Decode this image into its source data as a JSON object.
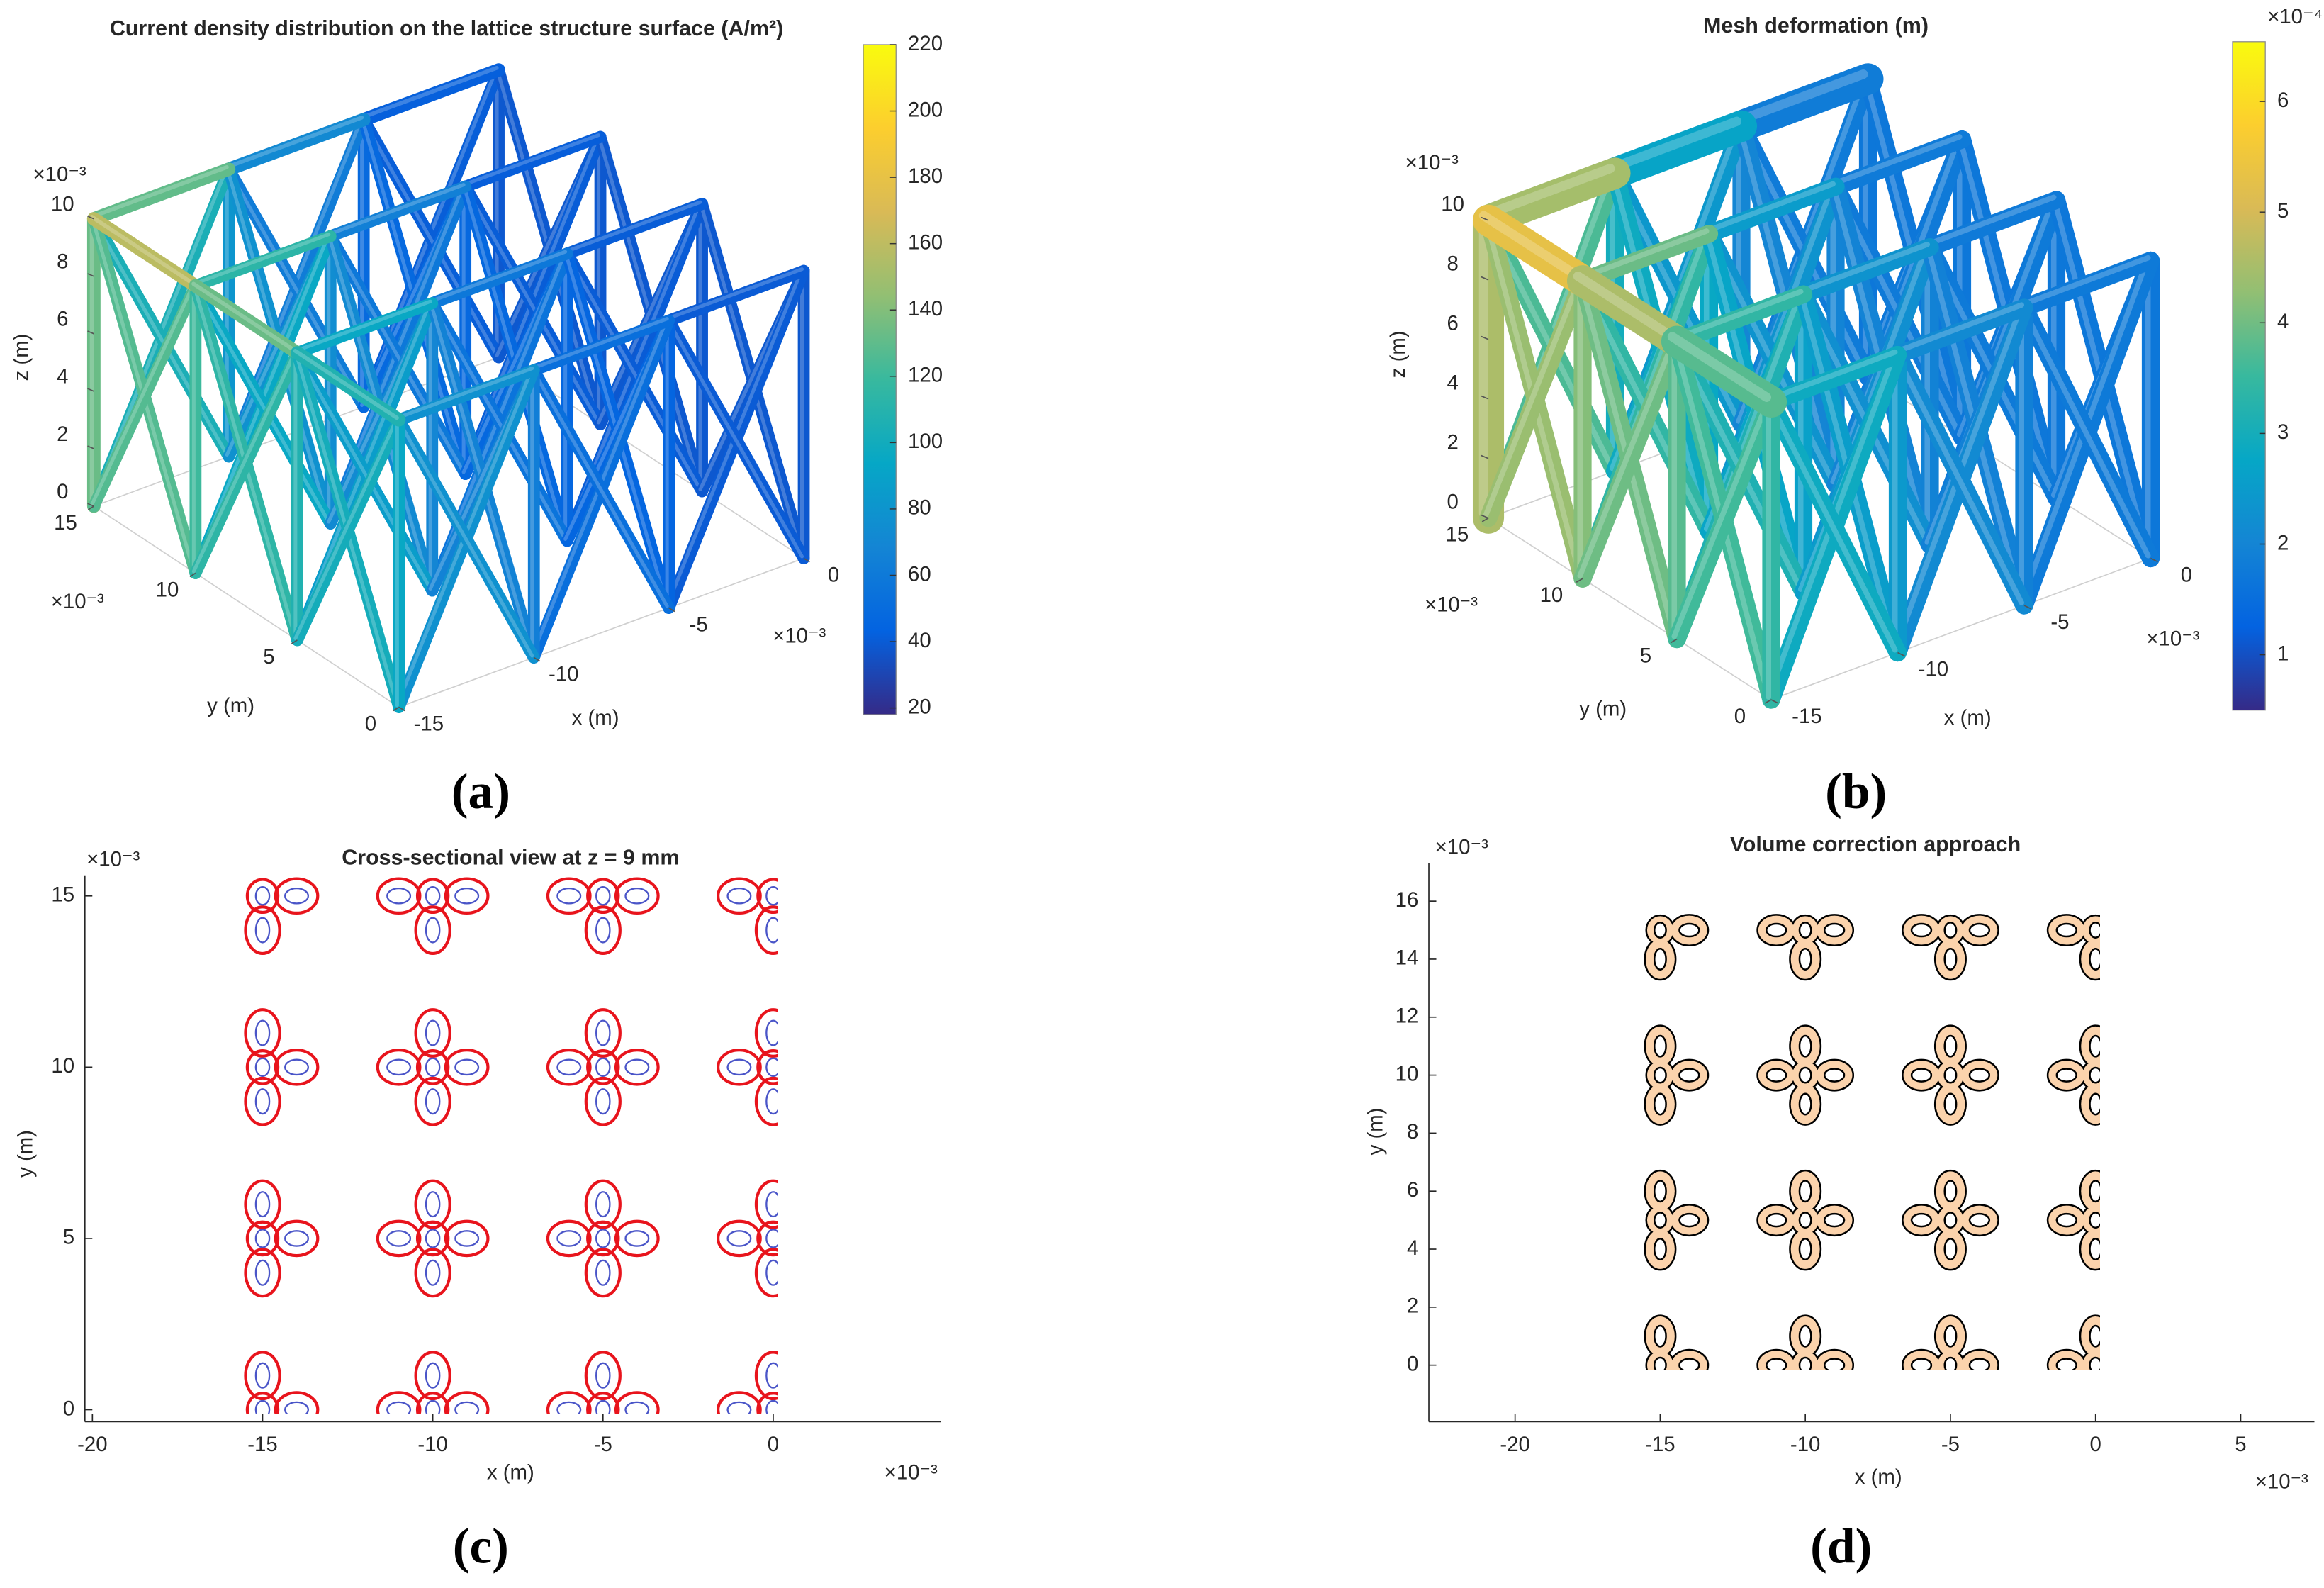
{
  "chart_data": [
    {
      "type": "lattice3d",
      "panel_label": "(a)",
      "title": "Current density distribution on the lattice structure surface (A/m²)",
      "x_label": "x (m)",
      "y_label": "y (m)",
      "z_label": "z (m)",
      "x_exponent": "×10⁻³",
      "y_exponent": "×10⁻³",
      "z_exponent": "×10⁻³",
      "xlim": [
        -15,
        0
      ],
      "ylim": [
        0,
        15
      ],
      "zlim": [
        0,
        10
      ],
      "xticks": [
        -15,
        -10,
        -5,
        0
      ],
      "yticks": [
        0,
        5,
        10,
        15
      ],
      "zticks": [
        0,
        2,
        4,
        6,
        8,
        10
      ],
      "colorbar": {
        "lim": [
          18,
          220
        ],
        "ticks": [
          20,
          40,
          60,
          80,
          100,
          120,
          140,
          160,
          180,
          200,
          220
        ]
      }
    },
    {
      "type": "lattice3d",
      "panel_label": "(b)",
      "title": "Mesh deformation (m)",
      "x_label": "x (m)",
      "y_label": "y (m)",
      "z_label": "z (m)",
      "x_exponent": "×10⁻³",
      "y_exponent": "×10⁻³",
      "z_exponent": "×10⁻³",
      "xlim": [
        -15,
        0
      ],
      "ylim": [
        0,
        15
      ],
      "zlim": [
        0,
        10
      ],
      "xticks": [
        -15,
        -10,
        -5,
        0
      ],
      "yticks": [
        0,
        5,
        10,
        15
      ],
      "zticks": [
        0,
        2,
        4,
        6,
        8,
        10
      ],
      "colorbar": {
        "lim": [
          0.5,
          6.54
        ],
        "ticks": [
          1,
          2,
          3,
          4,
          5,
          6
        ],
        "exponent": "×10⁻⁴"
      }
    },
    {
      "type": "cross_section",
      "panel_label": "(c)",
      "style": "outline",
      "title": "Cross-sectional view at z = 9 mm",
      "x_label": "x (m)",
      "y_label": "y (m)",
      "x_exponent": "×10⁻³",
      "y_exponent": "×10⁻³",
      "xlim": [
        -20.22,
        4.92
      ],
      "ylim": [
        -0.35,
        15.6
      ],
      "xticks": [
        -20,
        -15,
        -10,
        -5,
        0
      ],
      "yticks": [
        0,
        5,
        10,
        15
      ],
      "outer_color": "#e8141c",
      "inner_color": "#4a55c8"
    },
    {
      "type": "cross_section",
      "panel_label": "(d)",
      "style": "filled",
      "title": "Volume correction approach",
      "x_label": "x (m)",
      "y_label": "y (m)",
      "x_exponent": "×10⁻³",
      "y_exponent": "×10⁻³",
      "xlim": [
        -22.97,
        7.54
      ],
      "ylim": [
        -1.95,
        17.3
      ],
      "xticks": [
        -20,
        -15,
        -10,
        -5,
        0,
        5
      ],
      "yticks": [
        0,
        2,
        4,
        6,
        8,
        10,
        12,
        14,
        16
      ],
      "fill_color": "#fbd3ac",
      "edge_color": "#000000"
    }
  ]
}
